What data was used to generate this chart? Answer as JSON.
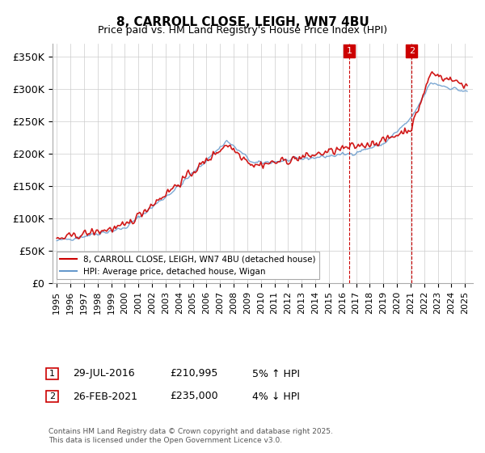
{
  "title1": "8, CARROLL CLOSE, LEIGH, WN7 4BU",
  "title2": "Price paid vs. HM Land Registry's House Price Index (HPI)",
  "ylabel": "",
  "ylim": [
    0,
    370000
  ],
  "yticks": [
    0,
    50000,
    100000,
    150000,
    200000,
    250000,
    300000,
    350000
  ],
  "ytick_labels": [
    "£0",
    "£50K",
    "£100K",
    "£150K",
    "£200K",
    "£250K",
    "£300K",
    "£350K"
  ],
  "legend_line1": "8, CARROLL CLOSE, LEIGH, WN7 4BU (detached house)",
  "legend_line2": "HPI: Average price, detached house, Wigan",
  "annotation1_label": "1",
  "annotation1_date": "29-JUL-2016",
  "annotation1_price": "£210,995",
  "annotation1_note": "5% ↑ HPI",
  "annotation2_label": "2",
  "annotation2_date": "26-FEB-2021",
  "annotation2_price": "£235,000",
  "annotation2_note": "4% ↓ HPI",
  "footer": "Contains HM Land Registry data © Crown copyright and database right 2025.\nThis data is licensed under the Open Government Licence v3.0.",
  "line_color_property": "#cc0000",
  "line_color_hpi": "#6699cc",
  "vline_color": "#cc0000",
  "annotation_box_color": "#cc0000",
  "grid_color": "#cccccc",
  "background_color": "#ffffff"
}
